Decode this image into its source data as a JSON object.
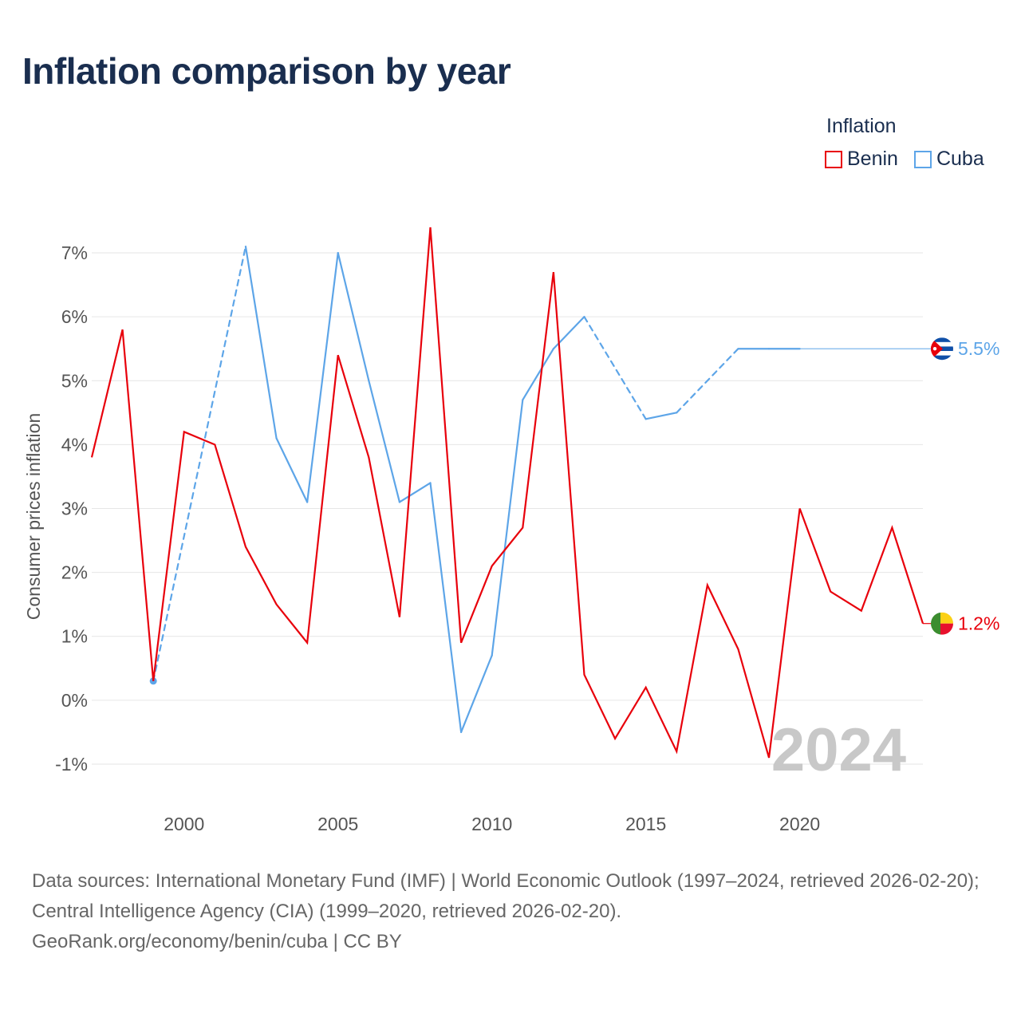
{
  "title": "Inflation comparison by year",
  "legend": {
    "title": "Inflation",
    "items": [
      {
        "label": "Benin",
        "color": "#e8000b"
      },
      {
        "label": "Cuba",
        "color": "#5da5e8"
      }
    ]
  },
  "source": {
    "line1": "Data sources: International Monetary Fund (IMF) | World Economic Outlook (1997–2024, retrieved 2026-02-20); Central Intelligence Agency (CIA) (1999–2020, retrieved 2026-02-20).",
    "line2": "GeoRank.org/economy/benin/cuba | CC BY"
  },
  "watermark_year": "2024",
  "chart_data": {
    "type": "line",
    "title": "Inflation comparison by year",
    "ylabel": "Consumer prices inflation",
    "xlabel": "",
    "xlim": [
      1997,
      2024
    ],
    "ylim": [
      -1.4,
      7.4
    ],
    "x_ticks": [
      2000,
      2005,
      2010,
      2015,
      2020
    ],
    "y_ticks": [
      -1,
      0,
      1,
      2,
      3,
      4,
      5,
      6,
      7
    ],
    "y_tick_labels": [
      "-1%",
      "0%",
      "1%",
      "2%",
      "3%",
      "4%",
      "5%",
      "6%",
      "7%"
    ],
    "series": [
      {
        "name": "Benin",
        "color": "#e8000b",
        "end_label": "1.2%",
        "x": [
          1997,
          1998,
          1999,
          2000,
          2001,
          2002,
          2003,
          2004,
          2005,
          2006,
          2007,
          2008,
          2009,
          2010,
          2011,
          2012,
          2013,
          2014,
          2015,
          2016,
          2017,
          2018,
          2019,
          2020,
          2021,
          2022,
          2023,
          2024
        ],
        "values": [
          3.8,
          5.8,
          0.3,
          4.2,
          4.0,
          2.4,
          1.5,
          0.9,
          5.4,
          3.8,
          1.3,
          7.4,
          0.9,
          2.1,
          2.7,
          6.7,
          0.4,
          -0.6,
          0.2,
          -0.8,
          1.8,
          0.8,
          -0.9,
          3.0,
          1.7,
          1.4,
          2.7,
          1.2
        ]
      },
      {
        "name": "Cuba",
        "color": "#5da5e8",
        "end_label": "5.5%",
        "x": [
          1999,
          2002,
          2003,
          2004,
          2005,
          2006,
          2007,
          2008,
          2009,
          2010,
          2011,
          2012,
          2013,
          2015,
          2016,
          2018,
          2019,
          2020
        ],
        "values": [
          0.3,
          7.1,
          4.1,
          3.1,
          7.0,
          5.0,
          3.1,
          3.4,
          -0.5,
          0.7,
          4.7,
          5.5,
          6.0,
          4.4,
          4.5,
          5.5,
          5.5,
          5.5
        ],
        "dashed_segments": [
          [
            1999,
            2002
          ],
          [
            2013,
            2015
          ],
          [
            2016,
            2018
          ]
        ],
        "extended_to": 2024
      }
    ]
  }
}
